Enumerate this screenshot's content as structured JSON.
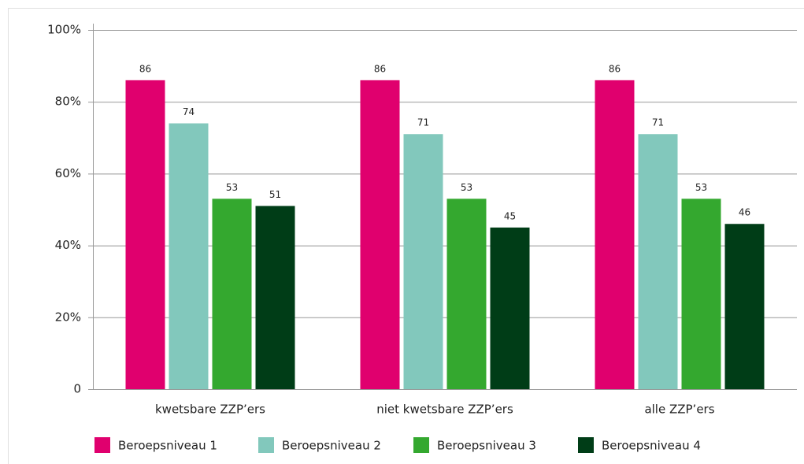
{
  "chart_data": {
    "type": "bar",
    "categories": [
      "kwetsbare ZZP’ers",
      "niet kwetsbare ZZP’ers",
      "alle ZZP’ers"
    ],
    "series": [
      {
        "name": "Beroepsniveau 1",
        "color": "#e0006e",
        "values": [
          86,
          86,
          86
        ]
      },
      {
        "name": "Beroepsniveau 2",
        "color": "#82c8bc",
        "values": [
          74,
          71,
          71
        ]
      },
      {
        "name": "Beroepsniveau 3",
        "color": "#34a82f",
        "values": [
          53,
          53,
          53
        ]
      },
      {
        "name": "Beroepsniveau 4",
        "color": "#003d17",
        "values": [
          51,
          45,
          46
        ]
      }
    ],
    "ylim": [
      0,
      100
    ],
    "yticks": [
      0,
      {
        "value": 20,
        "label": "20%"
      },
      {
        "value": 40,
        "label": "40%"
      },
      {
        "value": 60,
        "label": "60%"
      },
      {
        "value": 80,
        "label": "80%"
      },
      {
        "value": 100,
        "label": "100%"
      }
    ],
    "grid": true,
    "legend": "bottom"
  }
}
